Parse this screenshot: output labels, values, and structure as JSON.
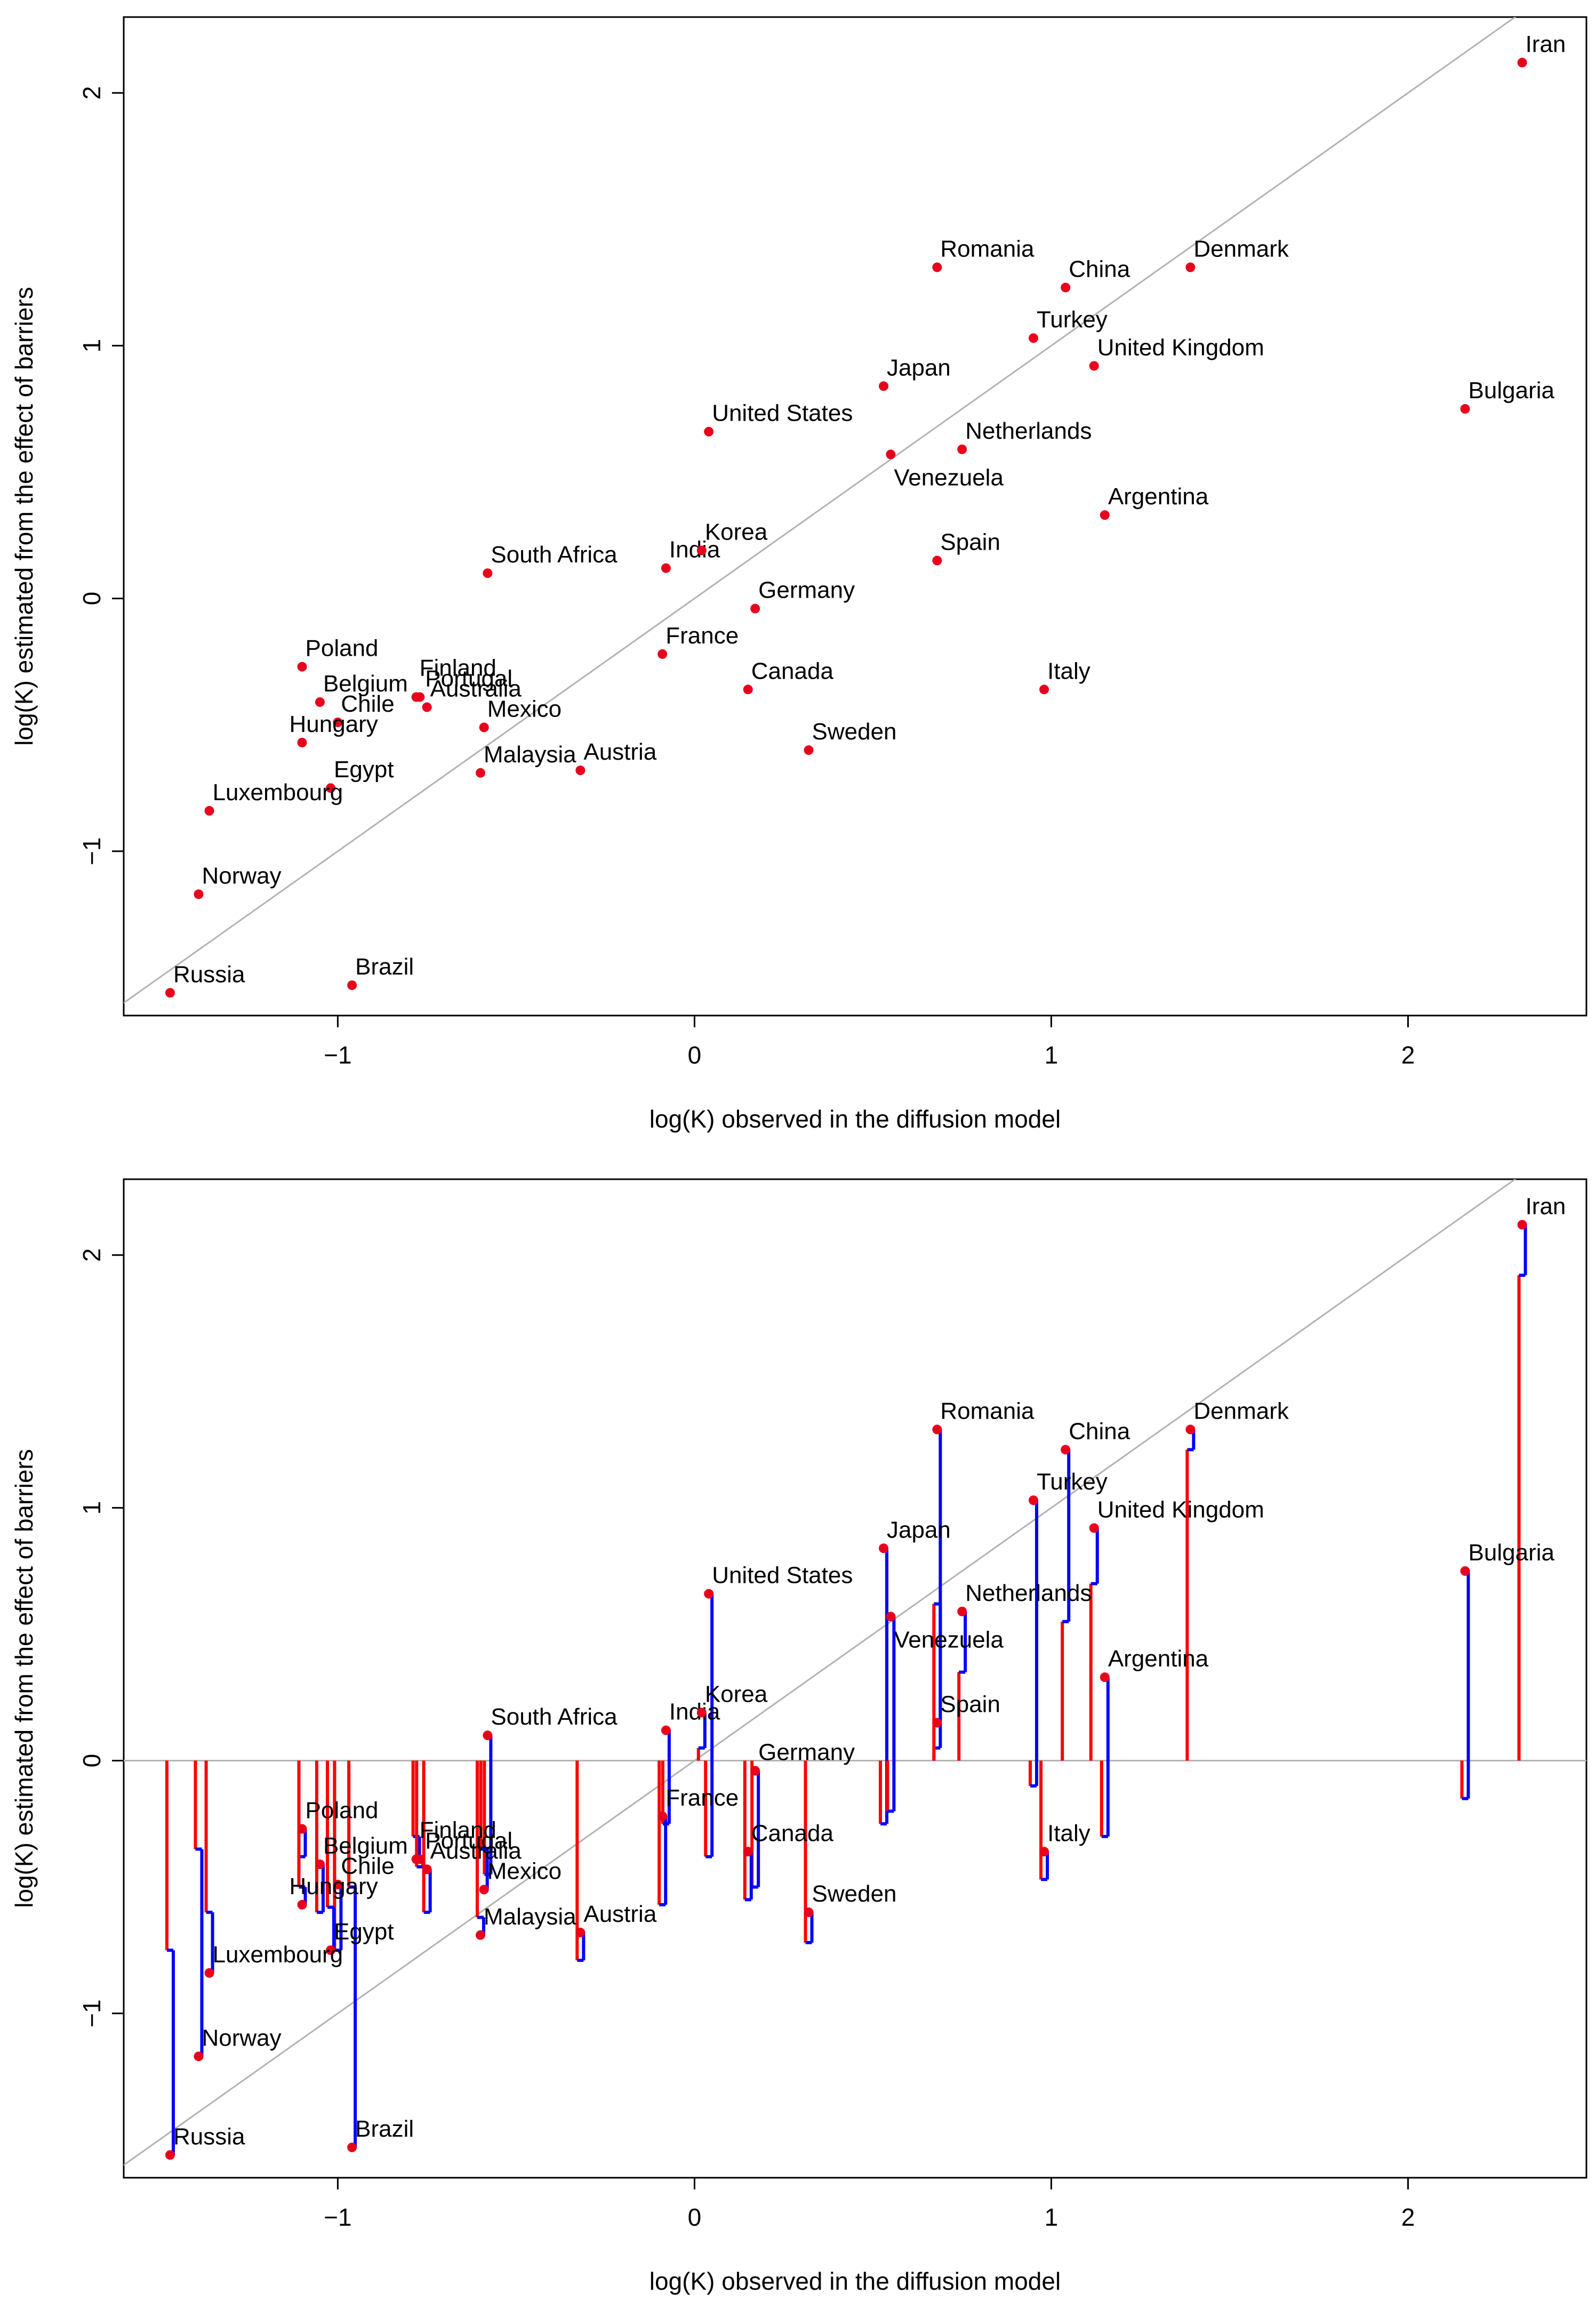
{
  "chart_data": [
    {
      "type": "scatter",
      "title": "",
      "xlabel": "log(K) observed in the diffusion model",
      "ylabel": "log(K) estimated from the effect of barriers",
      "xlim": [
        -1.6,
        2.5
      ],
      "ylim": [
        -1.65,
        2.3
      ],
      "xticks": [
        -1,
        0,
        1,
        2
      ],
      "yticks": [
        -1,
        0,
        1,
        2
      ],
      "xtick_labels": [
        "−1",
        "0",
        "1",
        "2"
      ],
      "ytick_labels": [
        "−1",
        "0",
        "1",
        "2"
      ],
      "reference_line": {
        "slope": 1,
        "intercept": 0,
        "color": "#b3b3b3"
      },
      "point_color": "#e8001c",
      "points": [
        {
          "name": "Iran",
          "x": 2.32,
          "y": 2.12
        },
        {
          "name": "Romania",
          "x": 0.68,
          "y": 1.31
        },
        {
          "name": "China",
          "x": 1.04,
          "y": 1.23
        },
        {
          "name": "Denmark",
          "x": 1.39,
          "y": 1.31
        },
        {
          "name": "Turkey",
          "x": 0.95,
          "y": 1.03
        },
        {
          "name": "United Kingdom",
          "x": 1.12,
          "y": 0.92
        },
        {
          "name": "Japan",
          "x": 0.53,
          "y": 0.84
        },
        {
          "name": "Bulgaria",
          "x": 2.16,
          "y": 0.75
        },
        {
          "name": "United States",
          "x": 0.04,
          "y": 0.66
        },
        {
          "name": "Netherlands",
          "x": 0.75,
          "y": 0.59
        },
        {
          "name": "Venezuela",
          "x": 0.55,
          "y": 0.57
        },
        {
          "name": "Argentina",
          "x": 1.15,
          "y": 0.33
        },
        {
          "name": "South Africa",
          "x": -0.58,
          "y": 0.1
        },
        {
          "name": "India",
          "x": -0.08,
          "y": 0.12
        },
        {
          "name": "Korea",
          "x": 0.02,
          "y": 0.19
        },
        {
          "name": "Spain",
          "x": 0.68,
          "y": 0.15
        },
        {
          "name": "Germany",
          "x": 0.17,
          "y": -0.04
        },
        {
          "name": "France",
          "x": -0.09,
          "y": -0.22
        },
        {
          "name": "Canada",
          "x": 0.15,
          "y": -0.36
        },
        {
          "name": "Italy",
          "x": 0.98,
          "y": -0.36
        },
        {
          "name": "Poland",
          "x": -1.1,
          "y": -0.27
        },
        {
          "name": "Finland",
          "x": -0.78,
          "y": -0.39
        },
        {
          "name": "Portugal",
          "x": -0.77,
          "y": -0.39
        },
        {
          "name": "Australia",
          "x": -0.75,
          "y": -0.43
        },
        {
          "name": "Belgium",
          "x": -1.05,
          "y": -0.41
        },
        {
          "name": "Chile",
          "x": -1.0,
          "y": -0.49
        },
        {
          "name": "Mexico",
          "x": -0.59,
          "y": -0.51
        },
        {
          "name": "Hungary",
          "x": -1.1,
          "y": -0.57
        },
        {
          "name": "Sweden",
          "x": 0.32,
          "y": -0.6
        },
        {
          "name": "Malaysia",
          "x": -0.6,
          "y": -0.69
        },
        {
          "name": "Austria",
          "x": -0.32,
          "y": -0.68
        },
        {
          "name": "Egypt",
          "x": -1.02,
          "y": -0.75
        },
        {
          "name": "Luxembourg",
          "x": -1.36,
          "y": -0.84
        },
        {
          "name": "Norway",
          "x": -1.39,
          "y": -1.17
        },
        {
          "name": "Brazil",
          "x": -0.96,
          "y": -1.53
        },
        {
          "name": "Russia",
          "x": -1.47,
          "y": -1.56
        }
      ]
    },
    {
      "type": "scatter",
      "title": "",
      "xlabel": "log(K) observed in the diffusion model",
      "ylabel": "log(K) estimated from the effect of barriers",
      "xlim": [
        -1.6,
        2.5
      ],
      "ylim": [
        -1.65,
        2.3
      ],
      "xticks": [
        -1,
        0,
        1,
        2
      ],
      "yticks": [
        -1,
        0,
        1,
        2
      ],
      "xtick_labels": [
        "−1",
        "0",
        "1",
        "2"
      ],
      "ytick_labels": [
        "−1",
        "0",
        "1",
        "2"
      ],
      "reference_line": {
        "slope": 1,
        "intercept": 0,
        "color": "#b3b3b3"
      },
      "zero_line": {
        "y": 0,
        "color": "#b3b3b3"
      },
      "point_color": "#e8001c",
      "component_colors": {
        "red_component": "#ff0000",
        "blue_component": "#0000ff"
      },
      "note": "Each country shows a stepped decomposition: a red segment from 0 to an intermediate value, then a blue segment from that value to the estimate.",
      "points": [
        {
          "name": "Iran",
          "x": 2.32,
          "y": 2.12,
          "mid": 1.92
        },
        {
          "name": "Romania",
          "x": 0.68,
          "y": 1.31,
          "mid": 0.05
        },
        {
          "name": "China",
          "x": 1.04,
          "y": 1.23,
          "mid": 0.55
        },
        {
          "name": "Denmark",
          "x": 1.39,
          "y": 1.31,
          "mid": 1.23
        },
        {
          "name": "Turkey",
          "x": 0.95,
          "y": 1.03,
          "mid": -0.1
        },
        {
          "name": "United Kingdom",
          "x": 1.12,
          "y": 0.92,
          "mid": 0.7
        },
        {
          "name": "Japan",
          "x": 0.53,
          "y": 0.84,
          "mid": -0.25
        },
        {
          "name": "Bulgaria",
          "x": 2.16,
          "y": 0.75,
          "mid": -0.15
        },
        {
          "name": "United States",
          "x": 0.04,
          "y": 0.66,
          "mid": -0.38
        },
        {
          "name": "Netherlands",
          "x": 0.75,
          "y": 0.59,
          "mid": 0.35
        },
        {
          "name": "Venezuela",
          "x": 0.55,
          "y": 0.57,
          "mid": -0.2
        },
        {
          "name": "Argentina",
          "x": 1.15,
          "y": 0.33,
          "mid": -0.3
        },
        {
          "name": "South Africa",
          "x": -0.58,
          "y": 0.1,
          "mid": -0.45
        },
        {
          "name": "India",
          "x": -0.08,
          "y": 0.12,
          "mid": -0.25
        },
        {
          "name": "Korea",
          "x": 0.02,
          "y": 0.19,
          "mid": 0.05
        },
        {
          "name": "Spain",
          "x": 0.68,
          "y": 0.15,
          "mid": 0.62
        },
        {
          "name": "Germany",
          "x": 0.17,
          "y": -0.04,
          "mid": -0.5
        },
        {
          "name": "France",
          "x": -0.09,
          "y": -0.22,
          "mid": -0.57
        },
        {
          "name": "Canada",
          "x": 0.15,
          "y": -0.36,
          "mid": -0.55
        },
        {
          "name": "Italy",
          "x": 0.98,
          "y": -0.36,
          "mid": -0.47
        },
        {
          "name": "Poland",
          "x": -1.1,
          "y": -0.27,
          "mid": -0.38
        },
        {
          "name": "Finland",
          "x": -0.78,
          "y": -0.39,
          "mid": -0.3
        },
        {
          "name": "Portugal",
          "x": -0.77,
          "y": -0.39,
          "mid": -0.42
        },
        {
          "name": "Australia",
          "x": -0.75,
          "y": -0.43,
          "mid": -0.6
        },
        {
          "name": "Belgium",
          "x": -1.05,
          "y": -0.41,
          "mid": -0.6
        },
        {
          "name": "Chile",
          "x": -1.0,
          "y": -0.49,
          "mid": -0.75
        },
        {
          "name": "Mexico",
          "x": -0.59,
          "y": -0.51,
          "mid": -0.35
        },
        {
          "name": "Hungary",
          "x": -1.1,
          "y": -0.57,
          "mid": -0.5
        },
        {
          "name": "Sweden",
          "x": 0.32,
          "y": -0.6,
          "mid": -0.72
        },
        {
          "name": "Malaysia",
          "x": -0.6,
          "y": -0.69,
          "mid": -0.62
        },
        {
          "name": "Austria",
          "x": -0.32,
          "y": -0.68,
          "mid": -0.79
        },
        {
          "name": "Egypt",
          "x": -1.02,
          "y": -0.75,
          "mid": -0.58
        },
        {
          "name": "Luxembourg",
          "x": -1.36,
          "y": -0.84,
          "mid": -0.6
        },
        {
          "name": "Norway",
          "x": -1.39,
          "y": -1.17,
          "mid": -0.35
        },
        {
          "name": "Brazil",
          "x": -0.96,
          "y": -1.53,
          "mid": -0.5
        },
        {
          "name": "Russia",
          "x": -1.47,
          "y": -1.56,
          "mid": -0.75
        }
      ]
    }
  ]
}
